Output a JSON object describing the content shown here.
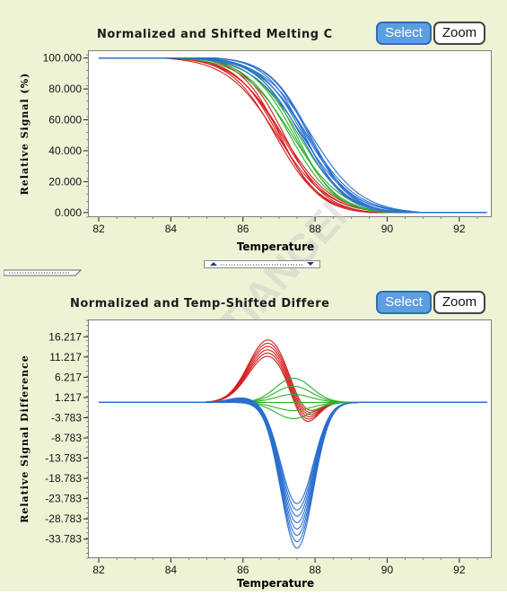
{
  "top_panel": {
    "title": "Normalized and Shifted Melting C",
    "select_label": "Select",
    "zoom_label": "Zoom"
  },
  "bottom_panel": {
    "title": "Normalized and Temp-Shifted Differe",
    "select_label": "Select",
    "zoom_label": "Zoom"
  },
  "watermark": "TIANGEN",
  "colors": {
    "red": "#d42020",
    "green": "#2bb02b",
    "blue": "#2a6fd0"
  },
  "chart_data": [
    {
      "type": "line",
      "title": "Normalized and Shifted Melting C",
      "xlabel": "Temperature",
      "ylabel": "Relative Signal (%)",
      "xlim": [
        81.7,
        92.9
      ],
      "ylim": [
        -3,
        105
      ],
      "xticks": [
        "82",
        "84",
        "86",
        "88",
        "90",
        "92"
      ],
      "yticks": [
        "100.000",
        "80.000",
        "60.000",
        "40.000",
        "20.000",
        "0.000"
      ],
      "groups": [
        {
          "color": "red",
          "count": 7,
          "midpoint_range": [
            86.9,
            87.15
          ]
        },
        {
          "color": "green",
          "count": 5,
          "midpoint_range": [
            87.3,
            87.55
          ]
        },
        {
          "color": "blue",
          "count": 9,
          "midpoint_range": [
            87.6,
            87.9
          ]
        }
      ]
    },
    {
      "type": "line",
      "title": "Normalized and Temp-Shifted Differe",
      "xlabel": "Temperature",
      "ylabel": "Relative Signal Difference",
      "xlim": [
        81.7,
        92.9
      ],
      "ylim": [
        -38.5,
        20.5
      ],
      "xticks": [
        "82",
        "84",
        "86",
        "88",
        "90",
        "92"
      ],
      "yticks": [
        "16.217",
        "11.217",
        "6.217",
        "1.217",
        "-3.783",
        "-8.783",
        "-13.783",
        "-18.783",
        "-23.783",
        "-28.783",
        "-33.783"
      ],
      "groups": [
        {
          "color": "red",
          "count": 6,
          "peak_x": 86.7,
          "peak_range": [
            11.5,
            15.5
          ],
          "trough_x": 87.7,
          "trough_range": [
            -6.5,
            -4.0
          ]
        },
        {
          "color": "green",
          "count": 6,
          "peak_x": 87.4,
          "peak_range": [
            -4.0,
            6.0
          ]
        },
        {
          "color": "blue",
          "count": 8,
          "peak_x": 87.5,
          "peak_range": [
            -36.0,
            -25.0
          ]
        }
      ]
    }
  ]
}
